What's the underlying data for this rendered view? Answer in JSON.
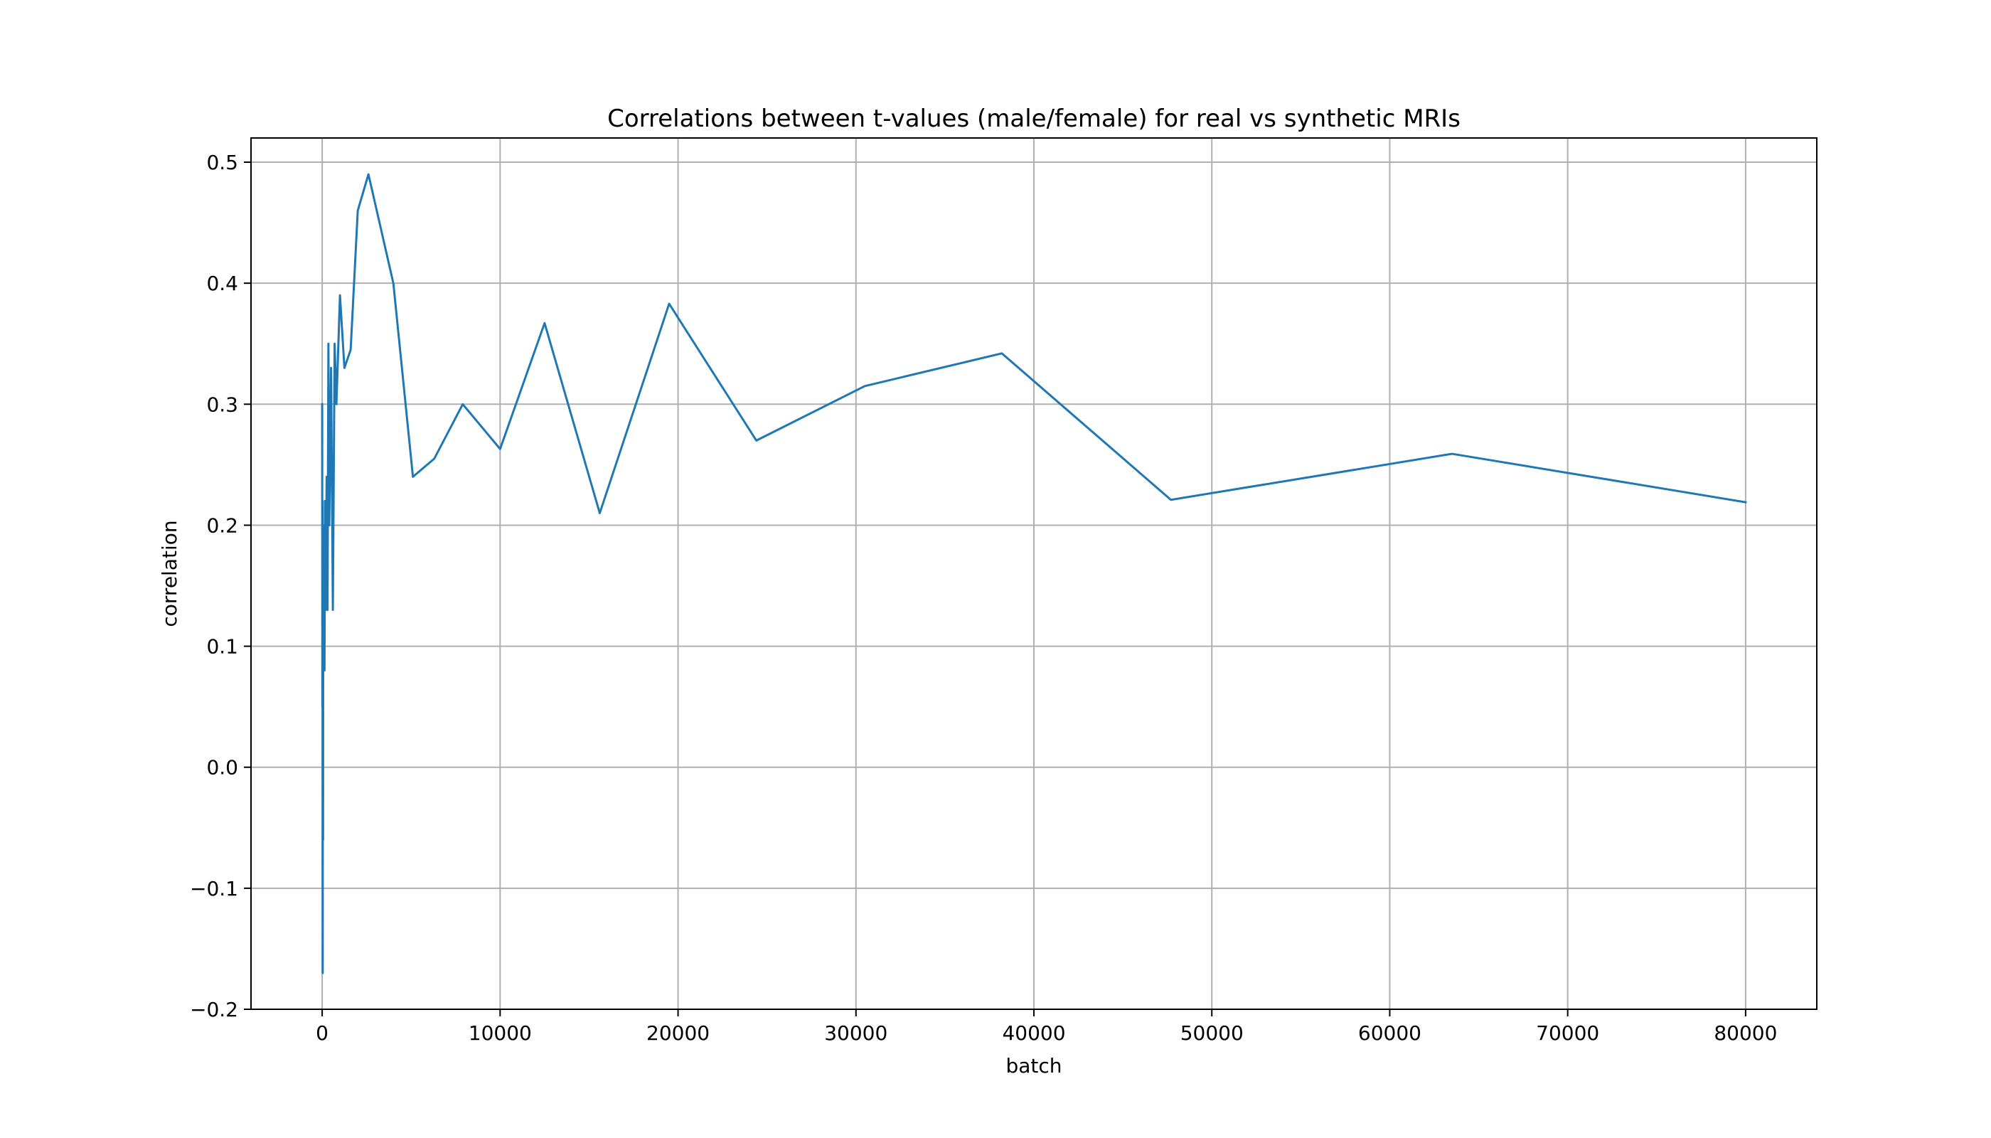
{
  "chart_data": {
    "type": "line",
    "title": "Correlations between t-values (male/female) for real vs synthetic MRIs",
    "xlabel": "batch",
    "ylabel": "correlation",
    "xlim": [
      -4000,
      84000
    ],
    "ylim": [
      -0.2,
      0.52
    ],
    "xticks": [
      0,
      10000,
      20000,
      30000,
      40000,
      50000,
      60000,
      70000,
      80000
    ],
    "xtick_labels": [
      "0",
      "10000",
      "20000",
      "30000",
      "40000",
      "50000",
      "60000",
      "70000",
      "80000"
    ],
    "yticks": [
      -0.2,
      -0.1,
      0.0,
      0.1,
      0.2,
      0.3,
      0.4,
      0.5
    ],
    "ytick_labels": [
      "−0.2",
      "−0.1",
      "0.0",
      "0.1",
      "0.2",
      "0.3",
      "0.4",
      "0.5"
    ],
    "grid": true,
    "series": [
      {
        "color": "#1f77b4",
        "x": [
          0,
          10,
          20,
          30,
          40,
          50,
          60,
          80,
          100,
          130,
          160,
          200,
          250,
          300,
          350,
          400,
          500,
          600,
          700,
          800,
          1000,
          1250,
          1600,
          2000,
          2600,
          4000,
          5100,
          6300,
          7900,
          10000,
          12500,
          15600,
          19500,
          24400,
          30500,
          38200,
          47700,
          63500,
          80000
        ],
        "y": [
          0.3,
          0.05,
          0.22,
          -0.17,
          0.17,
          -0.06,
          0.2,
          0.1,
          0.18,
          0.08,
          0.22,
          0.13,
          0.24,
          0.13,
          0.35,
          0.2,
          0.33,
          0.13,
          0.35,
          0.3,
          0.39,
          0.33,
          0.345,
          0.46,
          0.49,
          0.4,
          0.24,
          0.255,
          0.3,
          0.263,
          0.367,
          0.21,
          0.383,
          0.27,
          0.315,
          0.342,
          0.221,
          0.259,
          0.219
        ]
      }
    ]
  }
}
